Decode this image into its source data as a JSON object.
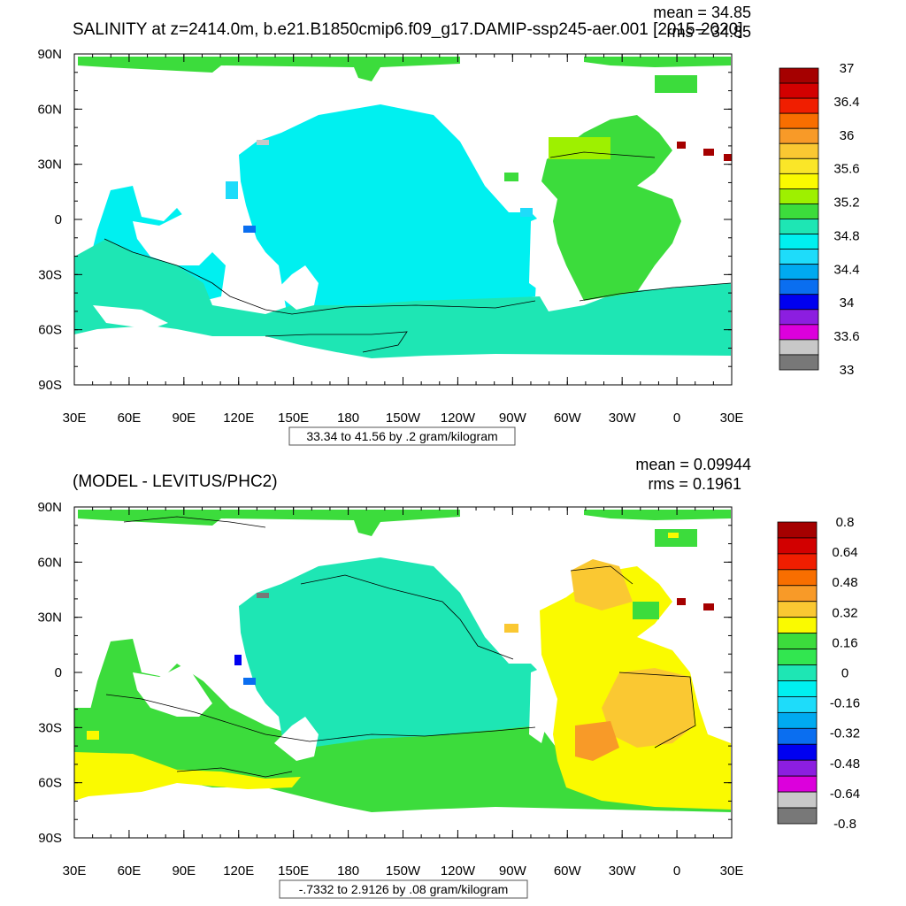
{
  "chart_data": [
    {
      "type": "heatmap",
      "title": "SALINITY at z=2414.0m, b.e21.B1850cmip6.f09_g17.DAMIP-ssp245-aer.001 [2015-2020]",
      "stats": {
        "mean": "mean = 34.85",
        "rms": "rms = 34.85"
      },
      "x_ticks": [
        "30E",
        "60E",
        "90E",
        "120E",
        "150E",
        "180",
        "150W",
        "120W",
        "90W",
        "60W",
        "30W",
        "0",
        "30E"
      ],
      "y_ticks": [
        "90N",
        "60N",
        "30N",
        "0",
        "30S",
        "60S",
        "90S"
      ],
      "colorbar_levels": [
        "37",
        "36.4",
        "36",
        "35.6",
        "35.2",
        "34.8",
        "34.4",
        "34",
        "33.6",
        "33"
      ],
      "colorbar_colors": [
        "#a50000",
        "#d20000",
        "#f01e00",
        "#f86e00",
        "#f89a28",
        "#fac832",
        "#fae628",
        "#fafa00",
        "#9ef000",
        "#3cdc3c",
        "#1ee6b4",
        "#00f0f0",
        "#1edcfa",
        "#00aaf0",
        "#0a6ef0",
        "#0000f0",
        "#8c1ee0",
        "#dc00dc",
        "#c8c8c8",
        "#787878"
      ],
      "range_note": "33.34 to 41.56 by .2 gram/kilogram"
    },
    {
      "type": "heatmap",
      "title": "(MODEL - LEVITUS/PHC2)",
      "stats": {
        "mean": "mean = 0.09944",
        "rms": "rms = 0.1961"
      },
      "x_ticks": [
        "30E",
        "60E",
        "90E",
        "120E",
        "150E",
        "180",
        "150W",
        "120W",
        "90W",
        "60W",
        "30W",
        "0",
        "30E"
      ],
      "y_ticks": [
        "90N",
        "60N",
        "30N",
        "0",
        "30S",
        "60S",
        "90S"
      ],
      "colorbar_levels": [
        "0.8",
        "0.64",
        "0.48",
        "0.32",
        "0.16",
        "0",
        "-0.16",
        "-0.32",
        "-0.48",
        "-0.64",
        "-0.8"
      ],
      "colorbar_colors": [
        "#a50000",
        "#d20000",
        "#f01e00",
        "#f86e00",
        "#f89a28",
        "#fac832",
        "#fafa00",
        "#3cdc3c",
        "#32e650",
        "#1ee6b4",
        "#00f0f0",
        "#1edcfa",
        "#00aaf0",
        "#0a6ef0",
        "#0000f0",
        "#8c1ee0",
        "#dc00dc",
        "#c8c8c8",
        "#787878"
      ],
      "range_note": "-.7332 to 2.9126 by .08 gram/kilogram"
    }
  ]
}
